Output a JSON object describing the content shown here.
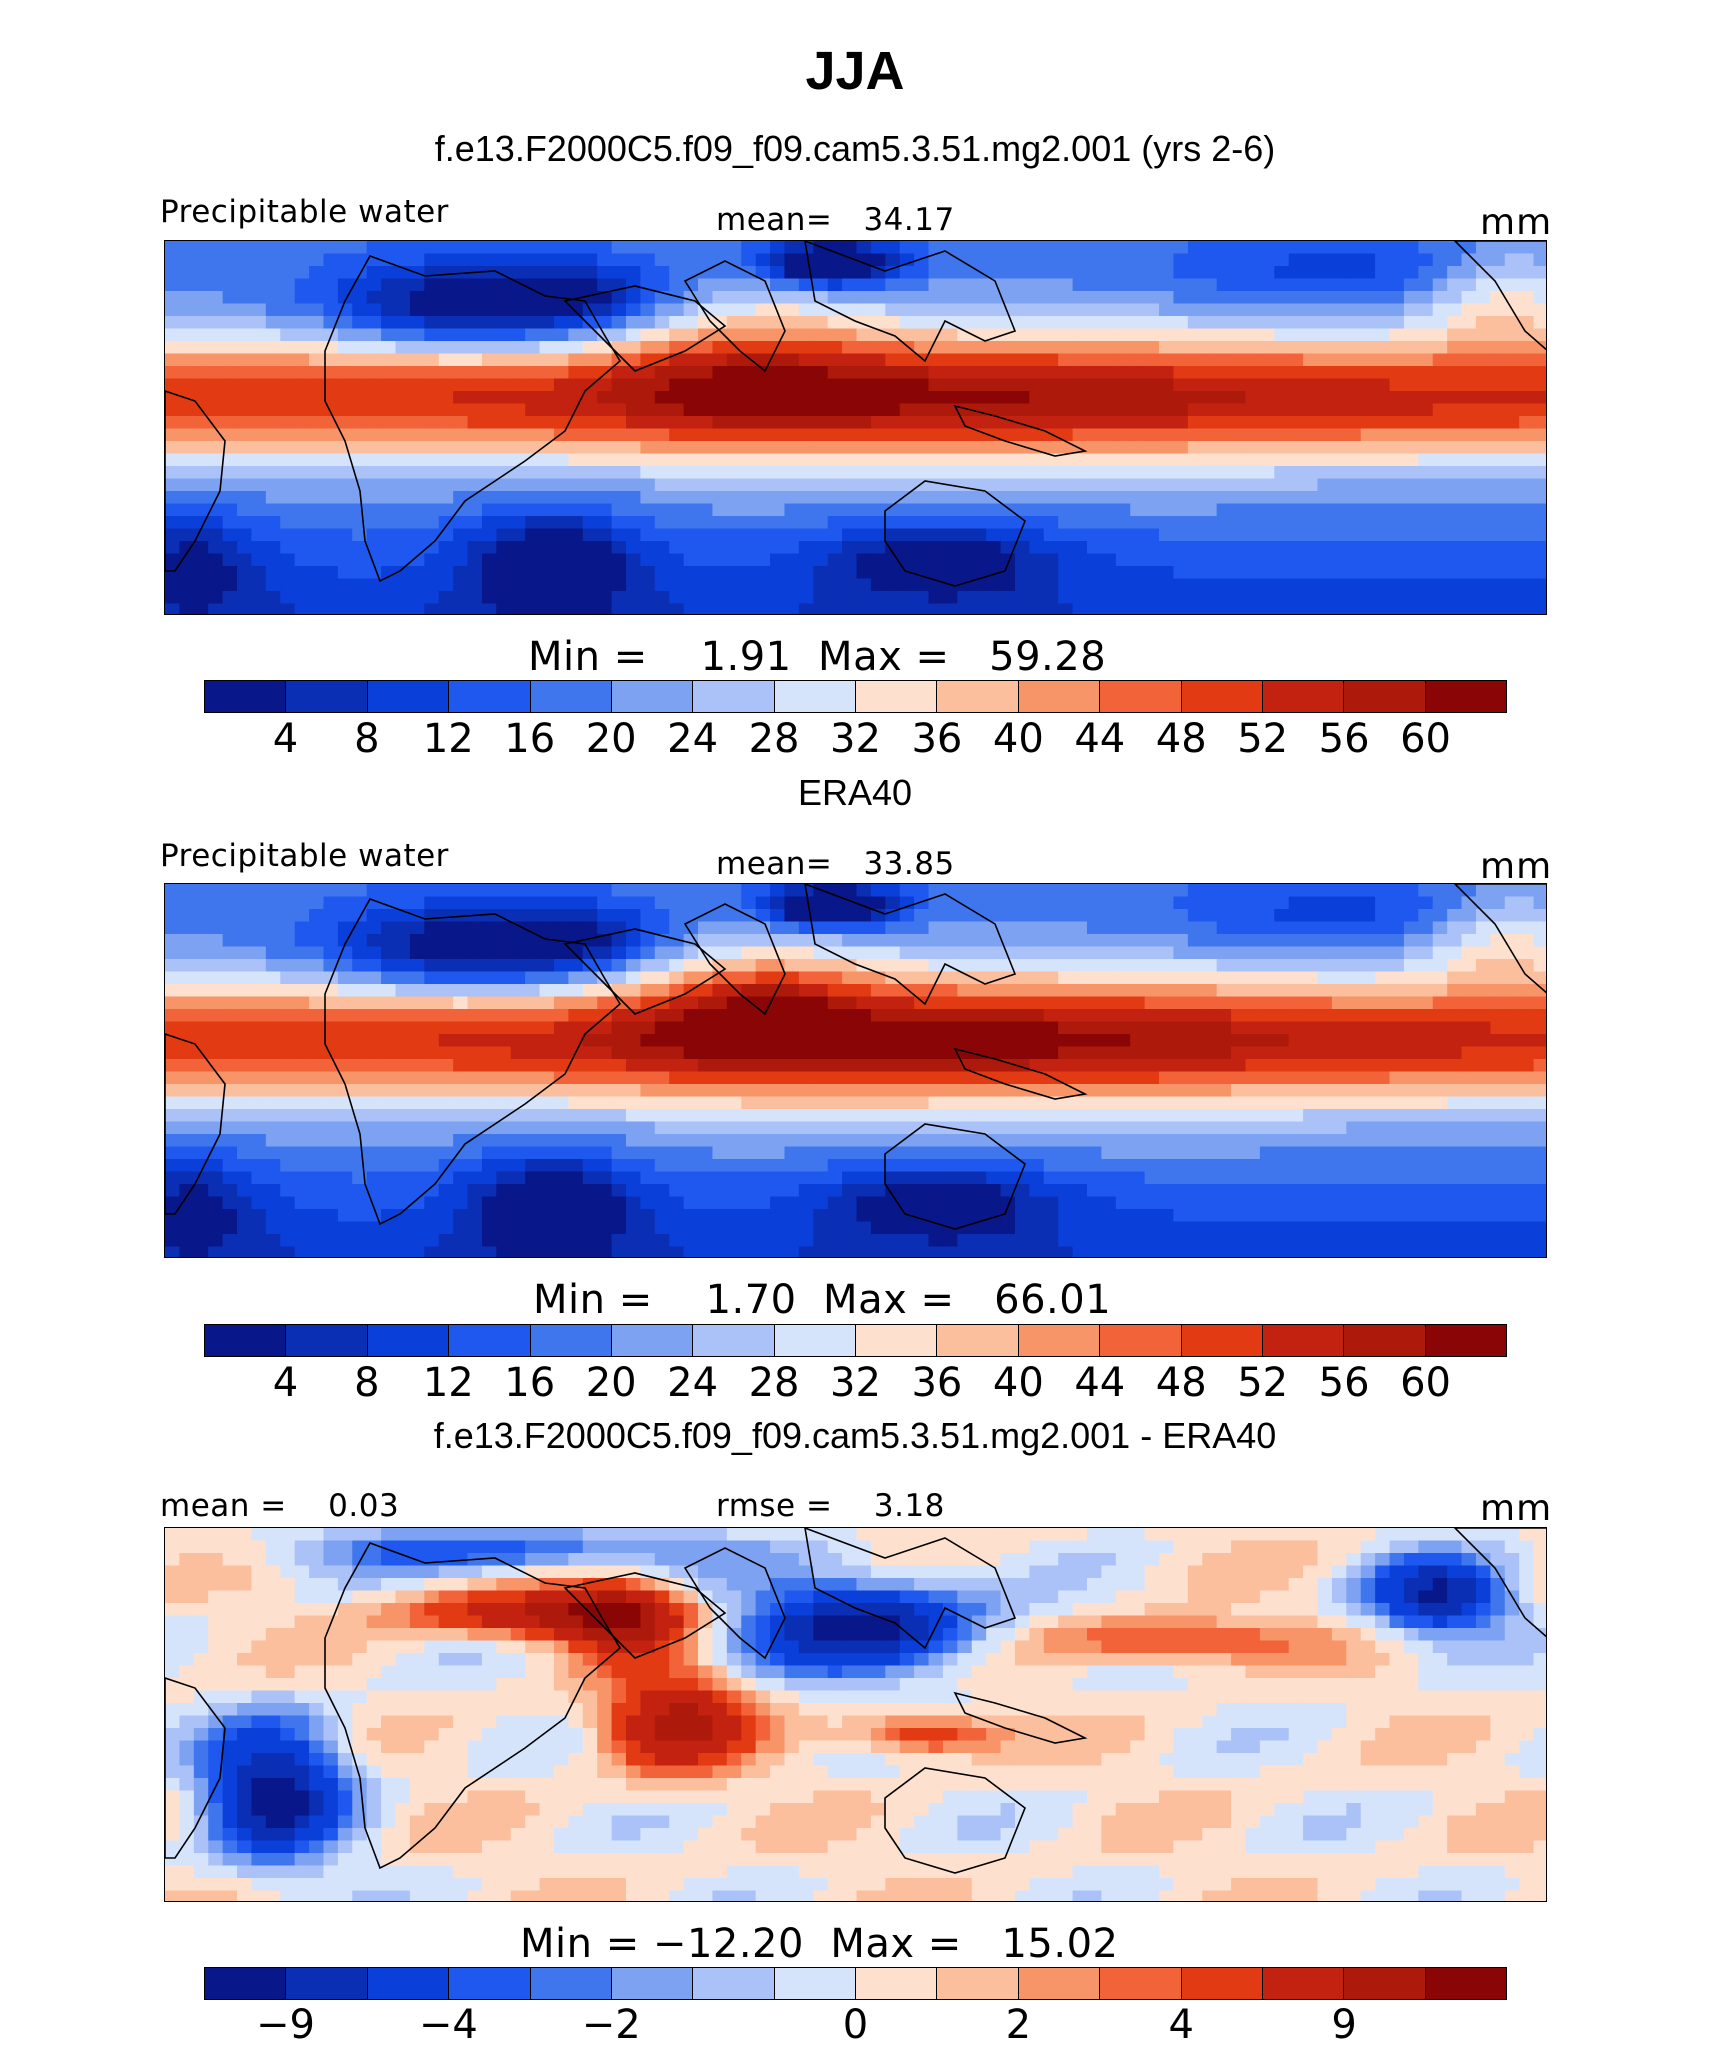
{
  "title": "JJA",
  "units": "mm",
  "panels": [
    {
      "title": "f.e13.F2000C5.f09_f09.cam5.3.51.mg2.001 (yrs 2-6)",
      "left_label": "Precipitable water",
      "center_label": "mean=   34.17",
      "right_label": "mm",
      "minmax": "Min =    1.91  Max =   59.28",
      "colorbar_labels": [
        "4",
        "8",
        "12",
        "16",
        "20",
        "24",
        "28",
        "32",
        "36",
        "40",
        "44",
        "48",
        "52",
        "56",
        "60"
      ]
    },
    {
      "title": "ERA40",
      "left_label": "Precipitable water",
      "center_label": "mean=   33.85",
      "right_label": "mm",
      "minmax": "Min =    1.70  Max =   66.01",
      "colorbar_labels": [
        "4",
        "8",
        "12",
        "16",
        "20",
        "24",
        "28",
        "32",
        "36",
        "40",
        "44",
        "48",
        "52",
        "56",
        "60"
      ]
    },
    {
      "title": "f.e13.F2000C5.f09_f09.cam5.3.51.mg2.001 - ERA40",
      "left_label": "mean =    0.03",
      "center_label": "rmse =    3.18",
      "right_label": "mm",
      "minmax": "Min = −12.20  Max =   15.02",
      "colorbar_labels": [
        "−9",
        "−4",
        "−2",
        "0",
        "2",
        "4",
        "9"
      ]
    }
  ],
  "colorbar_colors": [
    "#08178a",
    "#0a2fb5",
    "#0b3fd9",
    "#1f58ef",
    "#3f76ee",
    "#7ea2f2",
    "#aac2f7",
    "#d6e4fb",
    "#fde0cd",
    "#fbbf9e",
    "#f79468",
    "#f2633a",
    "#e23a12",
    "#c42210",
    "#ad1a0b",
    "#8a0606"
  ],
  "chart_data": {
    "type": "heatmap",
    "season": "JJA",
    "variable": "Precipitable water",
    "units": "mm",
    "maps": [
      {
        "name": "f.e13.F2000C5.f09_f09.cam5.3.51.mg2.001 (yrs 2-6)",
        "mean": 34.17,
        "min": 1.91,
        "max": 59.28,
        "levels": [
          4,
          8,
          12,
          16,
          20,
          24,
          28,
          32,
          36,
          40,
          44,
          48,
          52,
          56,
          60
        ]
      },
      {
        "name": "ERA40",
        "mean": 33.85,
        "min": 1.7,
        "max": 66.01,
        "levels": [
          4,
          8,
          12,
          16,
          20,
          24,
          28,
          32,
          36,
          40,
          44,
          48,
          52,
          56,
          60
        ]
      },
      {
        "name": "f.e13.F2000C5.f09_f09.cam5.3.51.mg2.001 - ERA40",
        "mean": 0.03,
        "rmse": 3.18,
        "min": -12.2,
        "max": 15.02,
        "levels": [
          -9,
          -4,
          -2,
          0,
          2,
          4,
          9
        ]
      }
    ]
  }
}
